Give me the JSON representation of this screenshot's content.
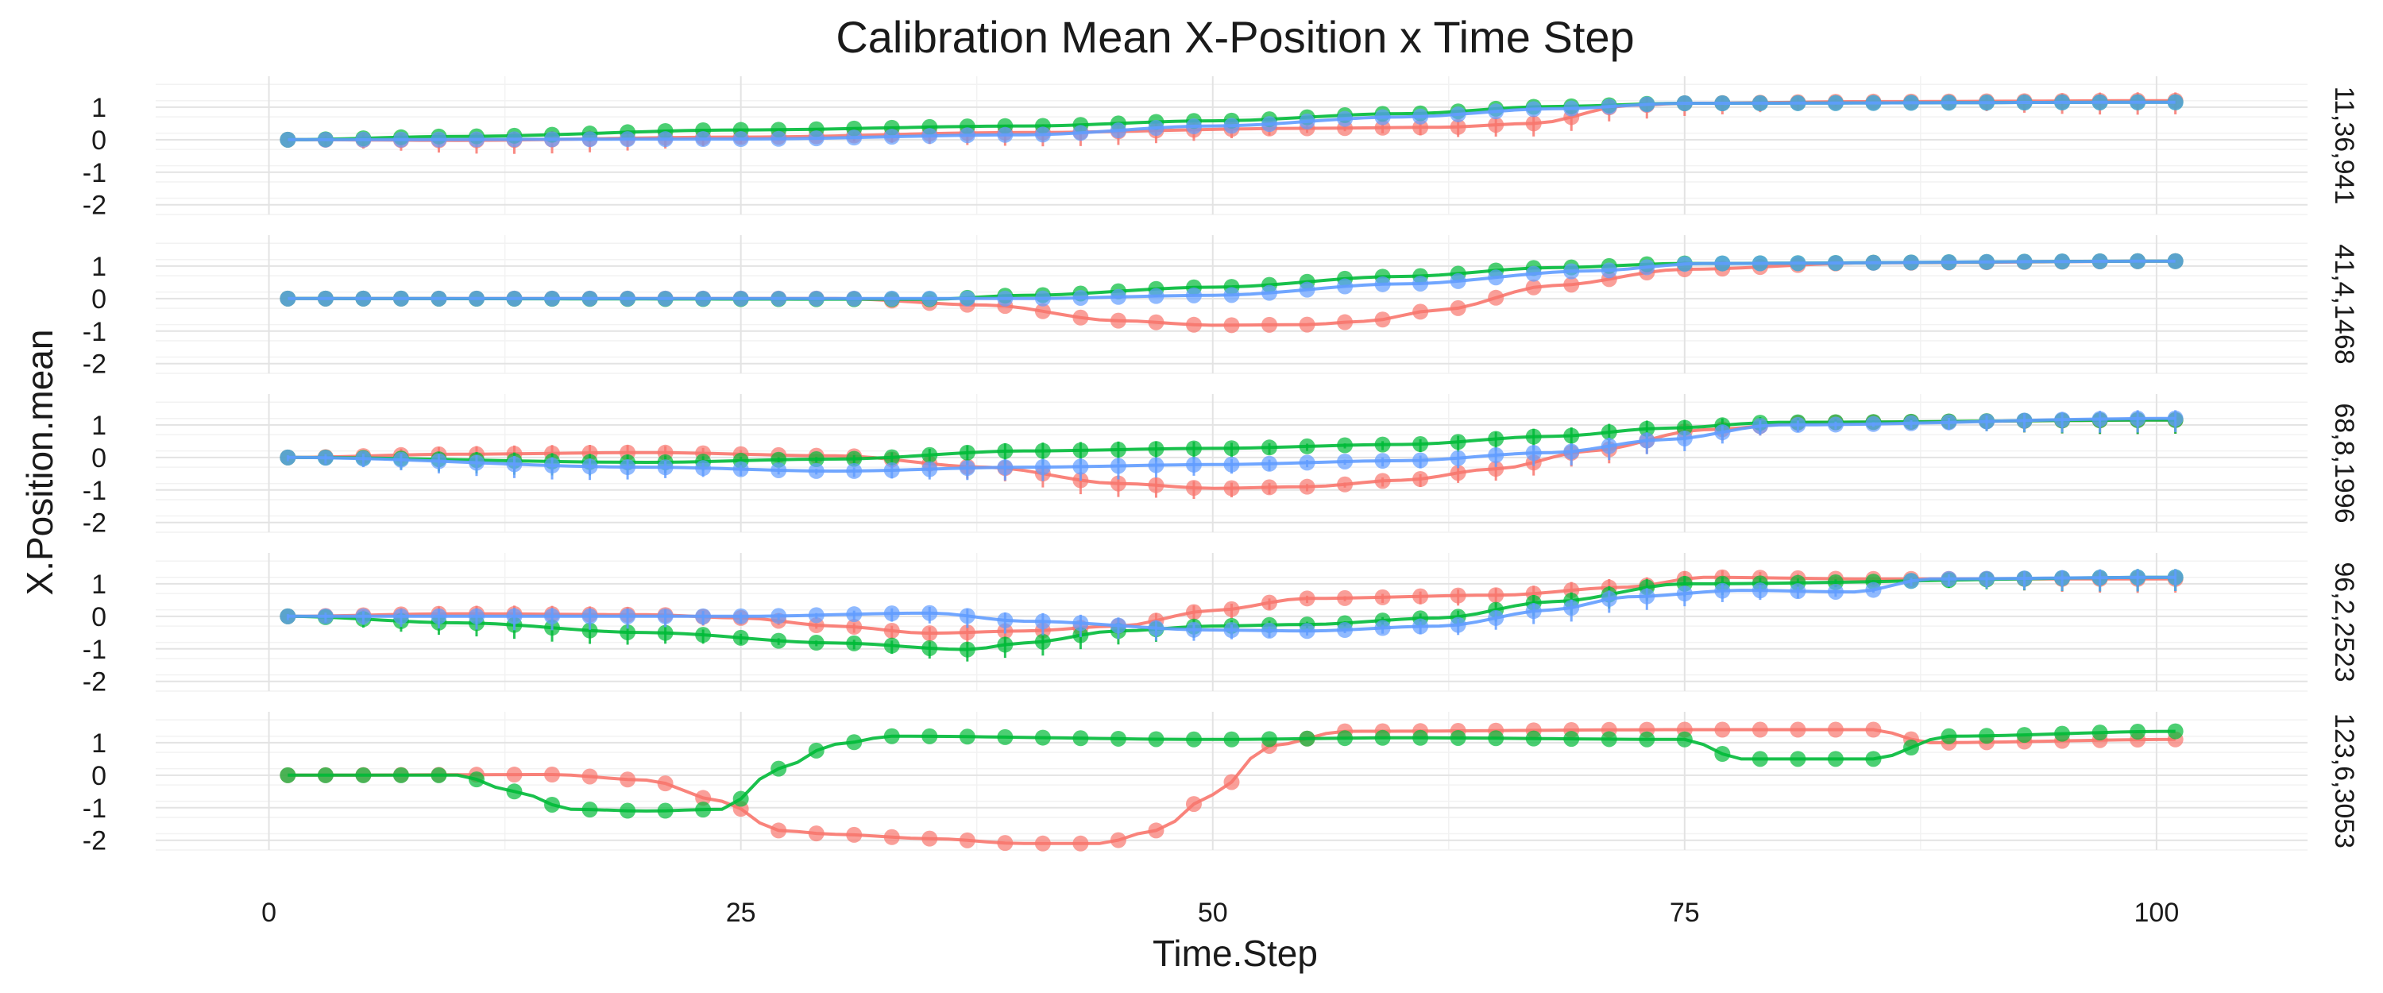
{
  "chart_data": {
    "type": "line",
    "title": "Calibration Mean X-Position x Time Step",
    "xlabel": "Time.Step",
    "ylabel": "X.Position.mean",
    "xlim": [
      -6,
      108
    ],
    "ylim": [
      -2.3,
      1.95
    ],
    "x_ticks": [
      0,
      25,
      50,
      75,
      100
    ],
    "x_tick_labels": [
      "0",
      "25",
      "50",
      "75",
      "100"
    ],
    "y_ticks": [
      1,
      0,
      -1,
      -2
    ],
    "y_tick_labels": [
      "1",
      "0",
      "-1",
      "-2"
    ],
    "grid": true,
    "legend": "none",
    "colors": {
      "red": "#F8766D",
      "green": "#00BA38",
      "blue": "#619CFF"
    },
    "facets": [
      {
        "label": "11,36,941",
        "series": [
          {
            "color": "#F8766D",
            "error_bars": true,
            "points": [
              [
                1,
                0
              ],
              [
                10,
                -0.02
              ],
              [
                25,
                0.08
              ],
              [
                40,
                0.22
              ],
              [
                55,
                0.35
              ],
              [
                62,
                0.38
              ],
              [
                67,
                0.5
              ],
              [
                72,
                1.05
              ],
              [
                75,
                1.12
              ],
              [
                85,
                1.17
              ],
              [
                101,
                1.2
              ]
            ]
          },
          {
            "color": "#00BA38",
            "error_bars": false,
            "points": [
              [
                1,
                0
              ],
              [
                10,
                0.1
              ],
              [
                25,
                0.3
              ],
              [
                40,
                0.42
              ],
              [
                50,
                0.58
              ],
              [
                60,
                0.8
              ],
              [
                68,
                1.02
              ],
              [
                75,
                1.12
              ],
              [
                101,
                1.15
              ]
            ]
          },
          {
            "color": "#619CFF",
            "error_bars": false,
            "points": [
              [
                1,
                0
              ],
              [
                25,
                0.02
              ],
              [
                40,
                0.15
              ],
              [
                50,
                0.42
              ],
              [
                60,
                0.7
              ],
              [
                68,
                0.95
              ],
              [
                75,
                1.12
              ],
              [
                101,
                1.15
              ]
            ]
          }
        ]
      },
      {
        "label": "41,4,1468",
        "series": [
          {
            "color": "#F8766D",
            "error_bars": false,
            "points": [
              [
                1,
                0
              ],
              [
                30,
                0
              ],
              [
                38,
                -0.2
              ],
              [
                45,
                -0.68
              ],
              [
                50,
                -0.82
              ],
              [
                55,
                -0.8
              ],
              [
                58,
                -0.7
              ],
              [
                62,
                -0.35
              ],
              [
                68,
                0.4
              ],
              [
                75,
                0.9
              ],
              [
                85,
                1.1
              ],
              [
                101,
                1.15
              ]
            ]
          },
          {
            "color": "#00BA38",
            "error_bars": false,
            "points": [
              [
                1,
                0
              ],
              [
                35,
                -0.02
              ],
              [
                40,
                0.1
              ],
              [
                50,
                0.35
              ],
              [
                60,
                0.68
              ],
              [
                68,
                0.95
              ],
              [
                75,
                1.08
              ],
              [
                101,
                1.15
              ]
            ]
          },
          {
            "color": "#619CFF",
            "error_bars": false,
            "points": [
              [
                1,
                0
              ],
              [
                40,
                0
              ],
              [
                50,
                0.1
              ],
              [
                60,
                0.45
              ],
              [
                70,
                0.85
              ],
              [
                76,
                1.08
              ],
              [
                101,
                1.15
              ]
            ]
          }
        ]
      },
      {
        "label": "68,8,1996",
        "series": [
          {
            "color": "#F8766D",
            "error_bars": true,
            "points": [
              [
                1,
                0
              ],
              [
                10,
                0.1
              ],
              [
                20,
                0.15
              ],
              [
                30,
                0.05
              ],
              [
                38,
                -0.3
              ],
              [
                45,
                -0.8
              ],
              [
                50,
                -0.95
              ],
              [
                55,
                -0.9
              ],
              [
                60,
                -0.7
              ],
              [
                65,
                -0.35
              ],
              [
                70,
                0.2
              ],
              [
                76,
                0.85
              ],
              [
                82,
                1.08
              ],
              [
                101,
                1.15
              ]
            ]
          },
          {
            "color": "#00BA38",
            "error_bars": true,
            "points": [
              [
                1,
                0
              ],
              [
                20,
                -0.15
              ],
              [
                30,
                -0.05
              ],
              [
                40,
                0.2
              ],
              [
                50,
                0.28
              ],
              [
                60,
                0.4
              ],
              [
                68,
                0.65
              ],
              [
                74,
                0.9
              ],
              [
                80,
                1.08
              ],
              [
                101,
                1.15
              ]
            ]
          },
          {
            "color": "#619CFF",
            "error_bars": true,
            "points": [
              [
                1,
                0
              ],
              [
                20,
                -0.3
              ],
              [
                30,
                -0.42
              ],
              [
                40,
                -0.3
              ],
              [
                50,
                -0.22
              ],
              [
                60,
                -0.1
              ],
              [
                68,
                0.15
              ],
              [
                74,
                0.55
              ],
              [
                80,
                1
              ],
              [
                101,
                1.2
              ]
            ]
          }
        ]
      },
      {
        "label": "96,2,2523",
        "series": [
          {
            "color": "#F8766D",
            "error_bars": true,
            "points": [
              [
                1,
                0
              ],
              [
                10,
                0.08
              ],
              [
                20,
                0.05
              ],
              [
                25,
                -0.05
              ],
              [
                30,
                -0.3
              ],
              [
                35,
                -0.52
              ],
              [
                40,
                -0.45
              ],
              [
                45,
                -0.3
              ],
              [
                50,
                0.18
              ],
              [
                55,
                0.55
              ],
              [
                65,
                0.65
              ],
              [
                72,
                0.9
              ],
              [
                76,
                1.2
              ],
              [
                85,
                1.15
              ],
              [
                101,
                1.15
              ]
            ]
          },
          {
            "color": "#00BA38",
            "error_bars": true,
            "points": [
              [
                1,
                0
              ],
              [
                10,
                -0.2
              ],
              [
                20,
                -0.5
              ],
              [
                30,
                -0.82
              ],
              [
                37,
                -1.02
              ],
              [
                40,
                -0.82
              ],
              [
                45,
                -0.45
              ],
              [
                50,
                -0.3
              ],
              [
                55,
                -0.25
              ],
              [
                62,
                -0.05
              ],
              [
                68,
                0.45
              ],
              [
                75,
                1
              ],
              [
                101,
                1.2
              ]
            ]
          },
          {
            "color": "#619CFF",
            "error_bars": true,
            "points": [
              [
                1,
                0
              ],
              [
                25,
                0
              ],
              [
                35,
                0.1
              ],
              [
                40,
                -0.15
              ],
              [
                50,
                -0.42
              ],
              [
                55,
                -0.45
              ],
              [
                62,
                -0.3
              ],
              [
                68,
                0.2
              ],
              [
                72,
                0.6
              ],
              [
                78,
                0.8
              ],
              [
                84,
                0.75
              ],
              [
                88,
                1.15
              ],
              [
                101,
                1.2
              ]
            ]
          }
        ]
      },
      {
        "label": "123,6,3053",
        "series": [
          {
            "color": "#F8766D",
            "error_bars": false,
            "points": [
              [
                1,
                0
              ],
              [
                15,
                0.02
              ],
              [
                20,
                -0.15
              ],
              [
                24,
                -0.8
              ],
              [
                27,
                -1.7
              ],
              [
                30,
                -1.82
              ],
              [
                35,
                -1.95
              ],
              [
                40,
                -2.1
              ],
              [
                44,
                -2.1
              ],
              [
                47,
                -1.7
              ],
              [
                50,
                -0.6
              ],
              [
                53,
                0.9
              ],
              [
                57,
                1.35
              ],
              [
                75,
                1.4
              ],
              [
                85,
                1.4
              ],
              [
                88,
                1.0
              ],
              [
                101,
                1.1
              ]
            ]
          },
          {
            "color": "#00BA38",
            "error_bars": false,
            "points": [
              [
                1,
                0
              ],
              [
                10,
                0
              ],
              [
                13,
                -0.5
              ],
              [
                16,
                -1.05
              ],
              [
                20,
                -1.1
              ],
              [
                24,
                -1.05
              ],
              [
                27,
                0.2
              ],
              [
                30,
                0.95
              ],
              [
                33,
                1.2
              ],
              [
                50,
                1.1
              ],
              [
                60,
                1.15
              ],
              [
                75,
                1.1
              ],
              [
                78,
                0.5
              ],
              [
                85,
                0.5
              ],
              [
                89,
                1.2
              ],
              [
                101,
                1.35
              ]
            ]
          }
        ]
      }
    ]
  }
}
